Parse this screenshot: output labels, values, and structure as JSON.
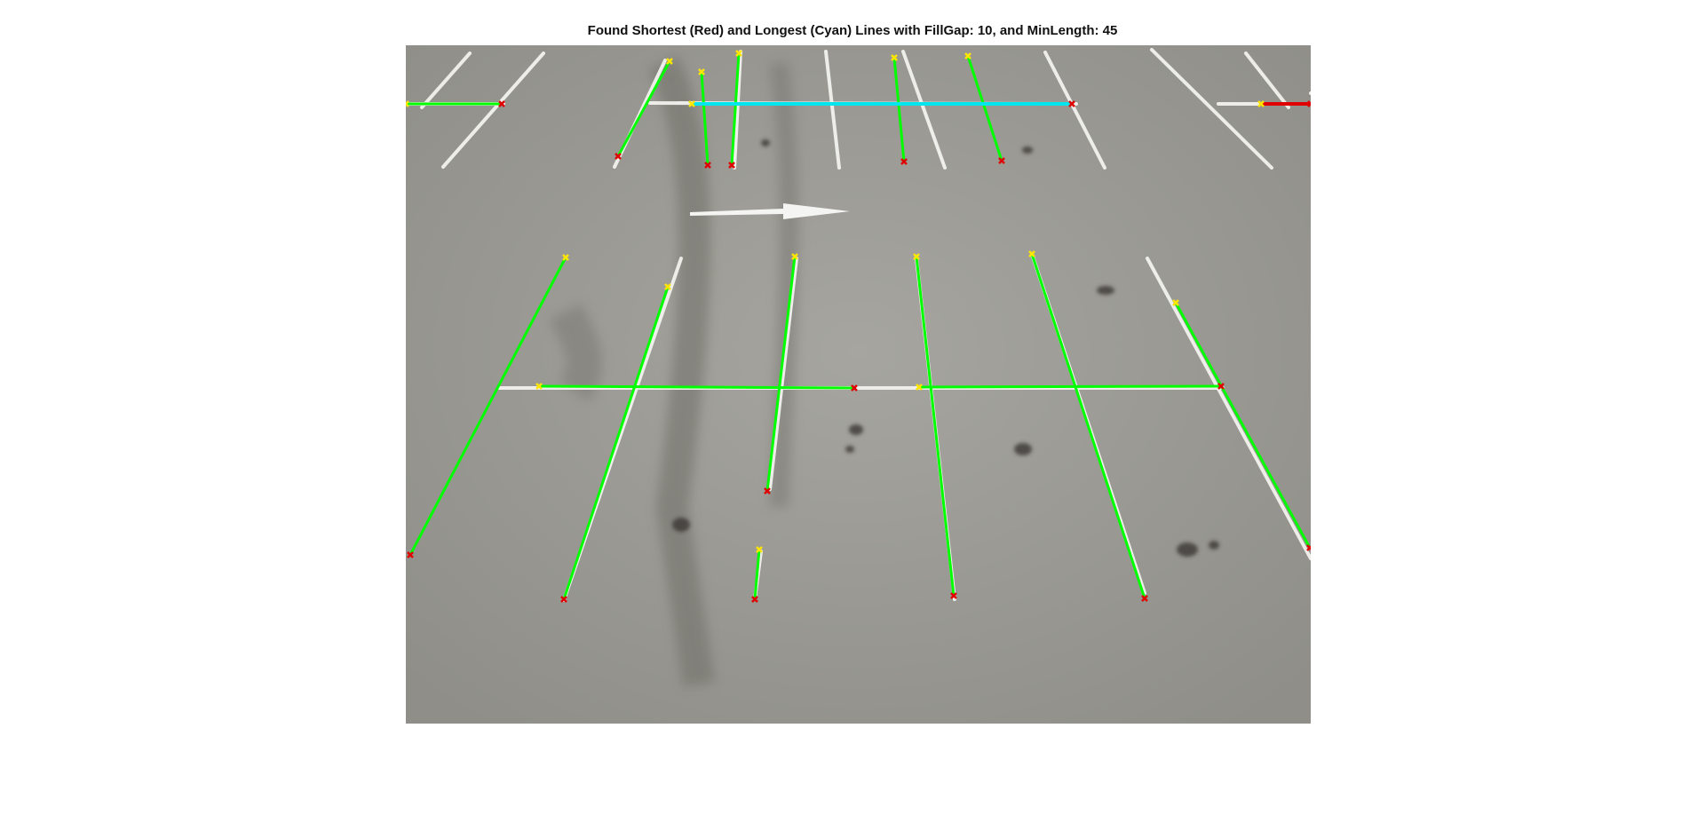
{
  "figure": {
    "title": "Found Shortest (Red) and Longest (Cyan) Lines with FillGap: 10, and MinLength: 45"
  },
  "colors": {
    "background": "#ffffff",
    "asphalt": "#9d9c96",
    "paint": "#f2f2ee",
    "detected_line": "#00ff00",
    "shortest_line": "#e00000",
    "longest_line": "#00e5ee",
    "start_marker": "#ffe600",
    "end_marker": "#e00000"
  },
  "image": {
    "description_icon": "parking-lot-photo",
    "arrow_icon": "arrow-right-icon"
  }
}
